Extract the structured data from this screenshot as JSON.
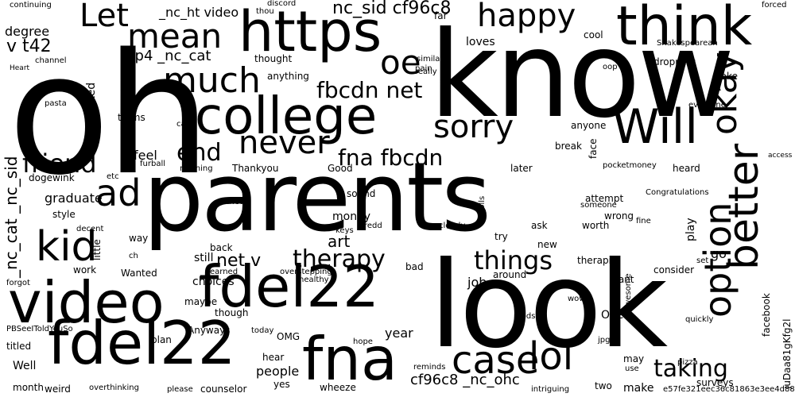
{
  "colors": {
    "background": "#ffffff",
    "text": "#000000"
  },
  "words": [
    {
      "text": "oh"
    },
    {
      "text": "know"
    },
    {
      "text": "parents"
    },
    {
      "text": "look"
    },
    {
      "text": "fdel22"
    },
    {
      "text": "video"
    },
    {
      "text": "fdel22"
    },
    {
      "text": "https"
    },
    {
      "text": "college"
    },
    {
      "text": "think"
    },
    {
      "text": "Will"
    },
    {
      "text": "fna"
    },
    {
      "text": "much"
    },
    {
      "text": "happy"
    },
    {
      "text": "mean"
    },
    {
      "text": "Let"
    },
    {
      "text": "sorry"
    },
    {
      "text": "never"
    },
    {
      "text": "okay"
    },
    {
      "text": "better"
    },
    {
      "text": "option"
    },
    {
      "text": "kid"
    },
    {
      "text": "ad"
    },
    {
      "text": "case"
    },
    {
      "text": "lol"
    },
    {
      "text": "things"
    },
    {
      "text": "therapy"
    },
    {
      "text": "taking"
    },
    {
      "text": "fbcdn net"
    },
    {
      "text": "fna fbcdn"
    },
    {
      "text": "oe"
    },
    {
      "text": "end"
    },
    {
      "text": "friend"
    },
    {
      "text": "nc_sid cf96c8"
    },
    {
      "text": "cf96c8 _nc_ohc"
    },
    {
      "text": "art"
    },
    {
      "text": "net v"
    },
    {
      "text": "_nc_ht video"
    },
    {
      "text": "mp4 _nc_cat"
    },
    {
      "text": "v t42"
    },
    {
      "text": "_nc_cat _nc_sid"
    },
    {
      "text": "people"
    },
    {
      "text": "year"
    },
    {
      "text": "surveys"
    },
    {
      "text": "counselor"
    },
    {
      "text": "make"
    },
    {
      "text": "two"
    },
    {
      "text": "job"
    },
    {
      "text": "therapist"
    },
    {
      "text": "Open"
    },
    {
      "text": "money"
    },
    {
      "text": "choices"
    },
    {
      "text": "still"
    },
    {
      "text": "graduate"
    },
    {
      "text": "degree"
    },
    {
      "text": "feel"
    },
    {
      "text": "Thankyou"
    },
    {
      "text": "Good"
    },
    {
      "text": "later"
    },
    {
      "text": "thought"
    },
    {
      "text": "loves"
    },
    {
      "text": "cool"
    },
    {
      "text": "dropping"
    },
    {
      "text": "anything"
    },
    {
      "text": "Shakespearean"
    },
    {
      "text": "take"
    },
    {
      "text": "everyone"
    },
    {
      "text": "looked"
    },
    {
      "text": "terms"
    },
    {
      "text": "pasta"
    },
    {
      "text": "channel"
    },
    {
      "text": "Heart"
    },
    {
      "text": "continuing"
    },
    {
      "text": "discord"
    },
    {
      "text": "forced"
    },
    {
      "text": "anyone"
    },
    {
      "text": "break"
    },
    {
      "text": "face"
    },
    {
      "text": "pocketmoney"
    },
    {
      "text": "heard"
    },
    {
      "text": "attempt"
    },
    {
      "text": "someone"
    },
    {
      "text": "wrong"
    },
    {
      "text": "worth"
    },
    {
      "text": "Congratulations"
    },
    {
      "text": "play"
    },
    {
      "text": "go"
    },
    {
      "text": "sound"
    },
    {
      "text": "polls"
    },
    {
      "text": "try"
    },
    {
      "text": "ask"
    },
    {
      "text": "new"
    },
    {
      "text": "around"
    },
    {
      "text": "consider"
    },
    {
      "text": "want"
    },
    {
      "text": "dogewink"
    },
    {
      "text": "furball"
    },
    {
      "text": "morning"
    },
    {
      "text": "style"
    },
    {
      "text": "decent"
    },
    {
      "text": "little"
    },
    {
      "text": "way"
    },
    {
      "text": "back"
    },
    {
      "text": "Wanted"
    },
    {
      "text": "work"
    },
    {
      "text": "maybe"
    },
    {
      "text": "though"
    },
    {
      "text": "Anyways"
    },
    {
      "text": "plan"
    },
    {
      "text": "OMG"
    },
    {
      "text": "hear"
    },
    {
      "text": "yes"
    },
    {
      "text": "wheeze"
    },
    {
      "text": "titled"
    },
    {
      "text": "Well"
    },
    {
      "text": "weird"
    },
    {
      "text": "month"
    },
    {
      "text": "PBSeeIToldYouSo"
    },
    {
      "text": "forgot"
    },
    {
      "text": "facebook"
    },
    {
      "text": "juDaa81gKfg2l"
    },
    {
      "text": "quickly"
    },
    {
      "text": "pizza"
    },
    {
      "text": "may"
    },
    {
      "text": "use"
    },
    {
      "text": "jpg"
    },
    {
      "text": "awesome"
    },
    {
      "text": "wow"
    },
    {
      "text": "mods"
    },
    {
      "text": "bad"
    },
    {
      "text": "etc"
    },
    {
      "text": "similar"
    },
    {
      "text": "pain"
    },
    {
      "text": "really"
    },
    {
      "text": "far"
    },
    {
      "text": "oop"
    },
    {
      "text": "clearly"
    },
    {
      "text": "keys"
    },
    {
      "text": "redd"
    },
    {
      "text": "ch"
    },
    {
      "text": "tried"
    },
    {
      "text": "overstepping"
    },
    {
      "text": "healthy"
    },
    {
      "text": "earned"
    },
    {
      "text": "hope"
    },
    {
      "text": "today"
    },
    {
      "text": "reminds"
    },
    {
      "text": "intriguing"
    },
    {
      "text": "please"
    },
    {
      "text": "overthinking"
    },
    {
      "text": "e57fe321eec36c81863e3ee4d8800f5c"
    },
    {
      "text": "thou"
    },
    {
      "text": "access"
    },
    {
      "text": "set"
    },
    {
      "text": "fine"
    },
    {
      "text": "call"
    }
  ]
}
